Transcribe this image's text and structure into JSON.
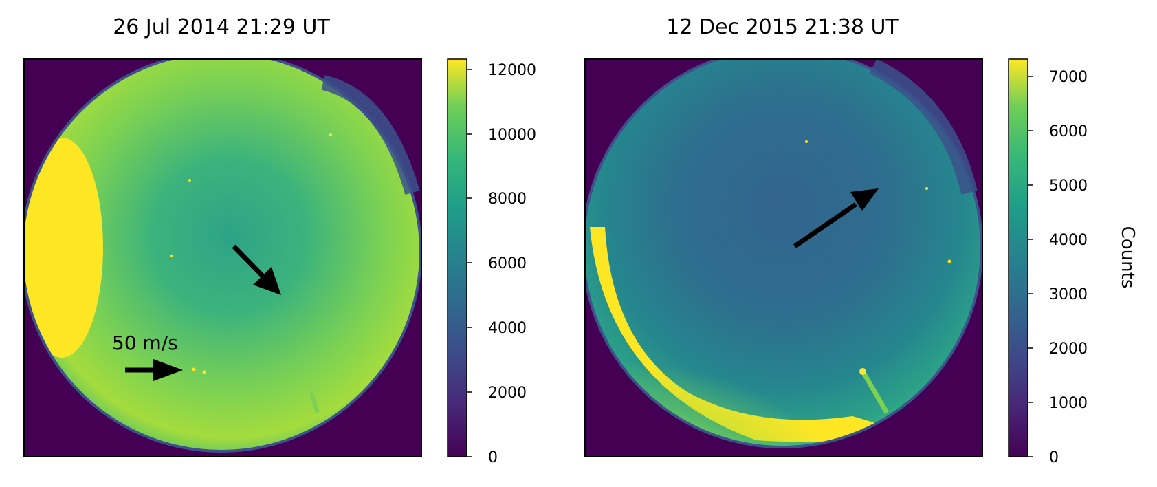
{
  "panels": [
    {
      "title": "26 Jul 2014 21:29 UT",
      "colorbar_ticks": [
        "0",
        "2000",
        "4000",
        "6000",
        "8000",
        "10000",
        "12000"
      ],
      "scale_label": "50 m/s"
    },
    {
      "title": "12 Dec 2015 21:38 UT",
      "colorbar_ticks": [
        "0",
        "1000",
        "2000",
        "3000",
        "4000",
        "5000",
        "6000",
        "7000"
      ]
    }
  ],
  "colorbar_label": "Counts",
  "colormap": "viridis",
  "colors": {
    "background": "#440154",
    "sky_teal": "#21908d",
    "sky_green": "#5ec962",
    "bright_yellow": "#fde725",
    "blue": "#3b528b",
    "arrow": "#000000"
  }
}
